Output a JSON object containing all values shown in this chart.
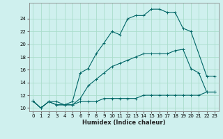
{
  "xlabel": "Humidex (Indice chaleur)",
  "background_color": "#cff0ee",
  "grid_color": "#aaddcc",
  "line_color": "#006666",
  "xlim": [
    -0.5,
    23.5
  ],
  "ylim": [
    9.5,
    26.5
  ],
  "xticks": [
    0,
    1,
    2,
    3,
    4,
    5,
    6,
    7,
    8,
    9,
    10,
    11,
    12,
    13,
    14,
    15,
    16,
    17,
    18,
    19,
    20,
    21,
    22,
    23
  ],
  "yticks": [
    10,
    12,
    14,
    16,
    18,
    20,
    22,
    24
  ],
  "series1_x": [
    0,
    1,
    2,
    3,
    4,
    5,
    6,
    7,
    8,
    9,
    10,
    11,
    12,
    13,
    14,
    15,
    16,
    17,
    18,
    19,
    20,
    21,
    22,
    23
  ],
  "series1_y": [
    11.1,
    10,
    11,
    10.5,
    10.5,
    10.5,
    11,
    11,
    11,
    11.5,
    11.5,
    11.5,
    11.5,
    11.5,
    12,
    12,
    12,
    12,
    12,
    12,
    12,
    12,
    12.5,
    12.5
  ],
  "series2_x": [
    0,
    1,
    2,
    3,
    4,
    5,
    6,
    7,
    8,
    9,
    10,
    11,
    12,
    13,
    14,
    15,
    16,
    17,
    18,
    19,
    20,
    21,
    22,
    23
  ],
  "series2_y": [
    11.1,
    10,
    11,
    11,
    10.5,
    10.5,
    11.5,
    13.5,
    14.5,
    15.5,
    16.5,
    17,
    17.5,
    18,
    18.5,
    18.5,
    18.5,
    18.5,
    19,
    19.2,
    16.2,
    15.5,
    12.5,
    12.5
  ],
  "series3_x": [
    0,
    1,
    2,
    3,
    4,
    5,
    6,
    7,
    8,
    9,
    10,
    11,
    12,
    13,
    14,
    15,
    16,
    17,
    18,
    19,
    20,
    22,
    23
  ],
  "series3_y": [
    11.1,
    10,
    11,
    10.5,
    10.5,
    11,
    15.5,
    16.2,
    18.5,
    20.2,
    22,
    21.5,
    24,
    24.5,
    24.5,
    25.5,
    25.5,
    25,
    25,
    22.5,
    22,
    15,
    15
  ]
}
